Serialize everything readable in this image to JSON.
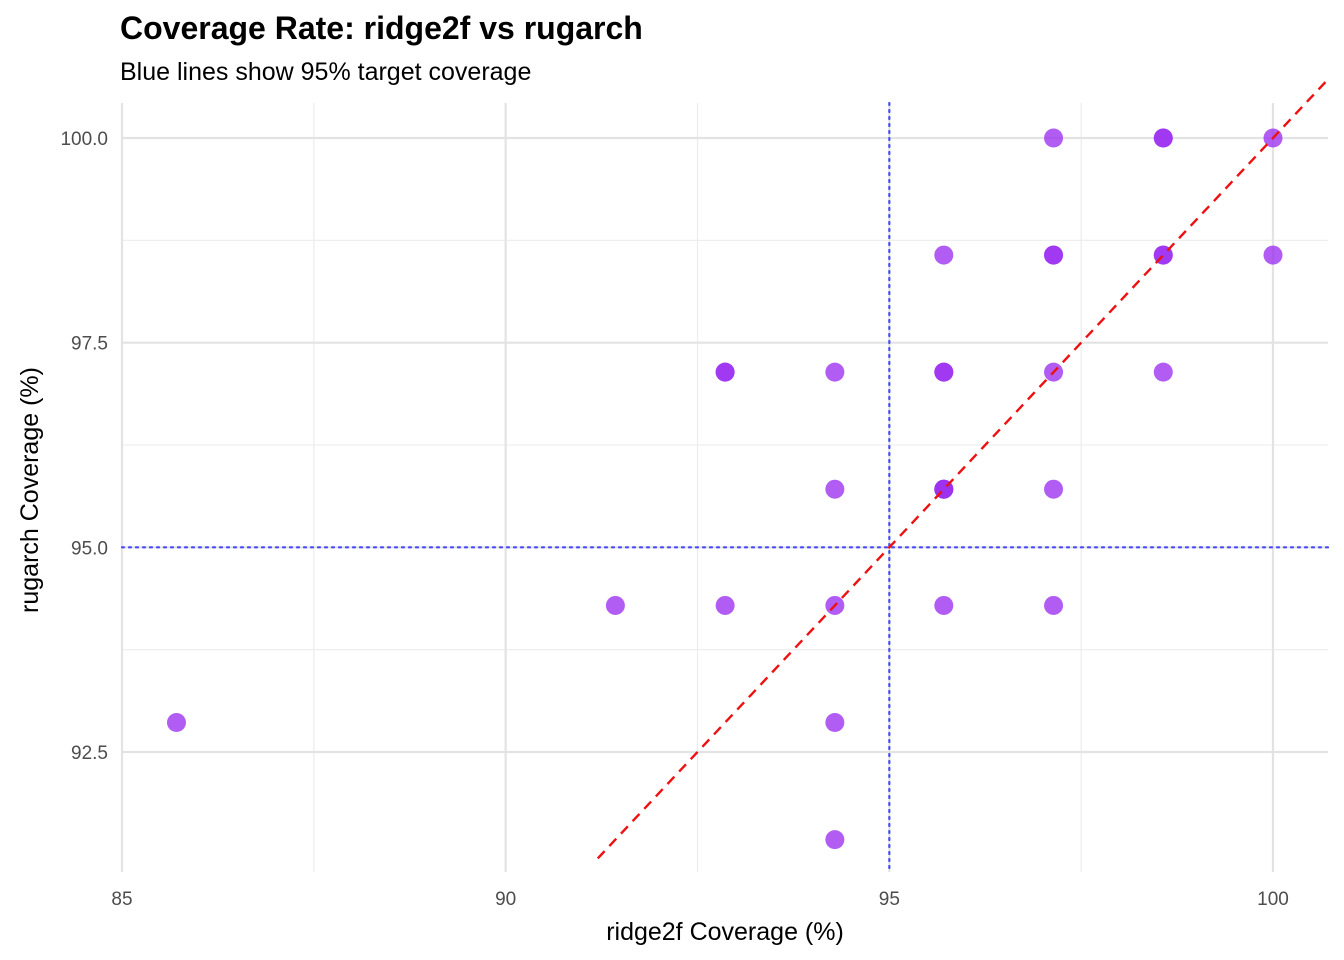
{
  "chart_data": {
    "type": "scatter",
    "title": "Coverage Rate: ridge2f vs rugarch",
    "subtitle": "Blue lines show 95% target coverage",
    "xlabel": "ridge2f Coverage (%)",
    "ylabel": "rugarch Coverage (%)",
    "xlim": [
      85,
      100.7
    ],
    "ylim": [
      91.2,
      100.4
    ],
    "x_ticks": [
      85,
      90,
      95,
      100
    ],
    "x_tick_labels": [
      "85",
      "90",
      "95",
      "100"
    ],
    "y_ticks": [
      92.5,
      95.0,
      97.5,
      100.0
    ],
    "y_tick_labels": [
      "92.5",
      "95.0",
      "97.5",
      "100.0"
    ],
    "x_minor_ticks": [
      87.5,
      92.5,
      97.5
    ],
    "y_minor_ticks": [
      93.75,
      96.25,
      98.75
    ],
    "grid": true,
    "point_color": "#9b30f0",
    "points": [
      {
        "x": 85.71,
        "y": 92.86
      },
      {
        "x": 91.43,
        "y": 94.29
      },
      {
        "x": 92.86,
        "y": 94.29
      },
      {
        "x": 92.86,
        "y": 97.14
      },
      {
        "x": 92.86,
        "y": 97.14
      },
      {
        "x": 94.29,
        "y": 91.43
      },
      {
        "x": 94.29,
        "y": 92.86
      },
      {
        "x": 94.29,
        "y": 94.29
      },
      {
        "x": 94.29,
        "y": 95.71
      },
      {
        "x": 94.29,
        "y": 97.14
      },
      {
        "x": 95.71,
        "y": 94.29
      },
      {
        "x": 95.71,
        "y": 95.71
      },
      {
        "x": 95.71,
        "y": 95.71
      },
      {
        "x": 95.71,
        "y": 95.71
      },
      {
        "x": 95.71,
        "y": 97.14
      },
      {
        "x": 95.71,
        "y": 97.14
      },
      {
        "x": 95.71,
        "y": 98.57
      },
      {
        "x": 97.14,
        "y": 94.29
      },
      {
        "x": 97.14,
        "y": 95.71
      },
      {
        "x": 97.14,
        "y": 97.14
      },
      {
        "x": 97.14,
        "y": 98.57
      },
      {
        "x": 97.14,
        "y": 98.57
      },
      {
        "x": 97.14,
        "y": 100.0
      },
      {
        "x": 98.57,
        "y": 97.14
      },
      {
        "x": 98.57,
        "y": 98.57
      },
      {
        "x": 98.57,
        "y": 98.57
      },
      {
        "x": 98.57,
        "y": 100.0
      },
      {
        "x": 98.57,
        "y": 100.0
      },
      {
        "x": 100.0,
        "y": 98.57
      },
      {
        "x": 100.0,
        "y": 100.0
      }
    ],
    "reference_lines": {
      "target_x": 95,
      "target_y": 95,
      "target_color": "#4b4bf5",
      "diagonal_color": "#ee1111"
    }
  }
}
